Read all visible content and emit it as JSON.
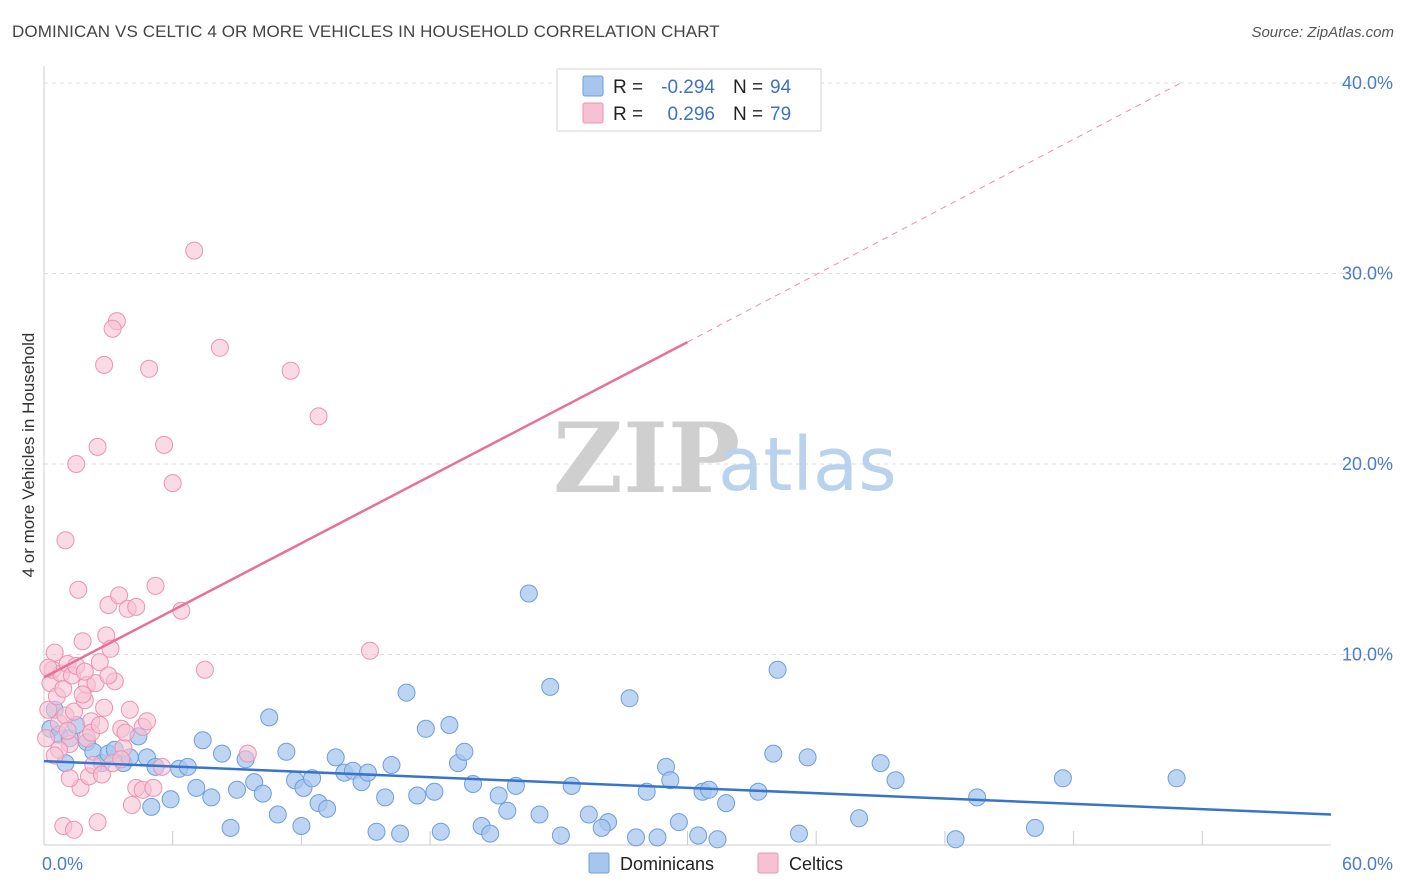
{
  "title": "DOMINICAN VS CELTIC 4 OR MORE VEHICLES IN HOUSEHOLD CORRELATION CHART",
  "source": "Source: ZipAtlas.com",
  "watermark": {
    "zip": "ZIP",
    "atlas": "atlas"
  },
  "colors": {
    "blue_fill": "#a7c6ee",
    "blue_stroke": "#6e9fd9",
    "blue_line": "#3874cb",
    "pink_fill": "#f6c1d3",
    "pink_stroke": "#ec93b1",
    "pink_line": "#e8709a",
    "grid": "#dddddd",
    "tick": "#4a7cc9"
  },
  "legend_box": {
    "rows": [
      {
        "r_label": "R =",
        "r_value": "-0.294",
        "n_label": "N =",
        "n_value": "94",
        "series": "blue"
      },
      {
        "r_label": "R =",
        "r_value": "0.296",
        "n_label": "N =",
        "n_value": "79",
        "series": "pink"
      }
    ]
  },
  "chart_data": {
    "type": "scatter",
    "ylabel": "4 or more Vehicles in Household",
    "xlim": [
      0,
      60
    ],
    "ylim": [
      0,
      40
    ],
    "x_tick_labels": [
      {
        "value": 0,
        "label": "0.0%"
      },
      {
        "value": 60,
        "label": "60.0%"
      }
    ],
    "y_tick_labels": [
      {
        "value": 10,
        "label": "10.0%"
      },
      {
        "value": 20,
        "label": "20.0%"
      },
      {
        "value": 30,
        "label": "30.0%"
      },
      {
        "value": 40,
        "label": "40.0%"
      }
    ],
    "x_minor_ticks": [
      6,
      12,
      18,
      24,
      30,
      36,
      42,
      48,
      54
    ],
    "legend": [
      "Dominicans",
      "Celtics"
    ],
    "series": [
      {
        "name": "Dominicans",
        "color": "blue",
        "trend": {
          "x0": 0,
          "y0": 4.4,
          "x1": 60,
          "y1": 1.6
        },
        "points": [
          [
            0.3,
            6.1
          ],
          [
            0.7,
            5.8
          ],
          [
            1.2,
            5.6
          ],
          [
            1.5,
            6.3
          ],
          [
            2.0,
            5.4
          ],
          [
            2.3,
            4.9
          ],
          [
            2.7,
            4.3
          ],
          [
            3.0,
            4.8
          ],
          [
            3.3,
            5.0
          ],
          [
            3.7,
            4.3
          ],
          [
            4.0,
            4.6
          ],
          [
            4.4,
            5.7
          ],
          [
            4.8,
            4.6
          ],
          [
            5.2,
            4.1
          ],
          [
            5.9,
            2.4
          ],
          [
            6.3,
            4.0
          ],
          [
            6.7,
            4.1
          ],
          [
            7.1,
            3.0
          ],
          [
            7.4,
            5.5
          ],
          [
            7.8,
            2.5
          ],
          [
            8.3,
            4.8
          ],
          [
            8.7,
            0.9
          ],
          [
            9.0,
            2.9
          ],
          [
            9.4,
            4.5
          ],
          [
            9.8,
            3.3
          ],
          [
            10.2,
            2.7
          ],
          [
            10.5,
            6.7
          ],
          [
            10.9,
            1.6
          ],
          [
            11.3,
            4.9
          ],
          [
            11.7,
            3.4
          ],
          [
            12.1,
            3.0
          ],
          [
            12.5,
            3.5
          ],
          [
            12.8,
            2.2
          ],
          [
            13.2,
            1.9
          ],
          [
            13.6,
            4.6
          ],
          [
            14.0,
            3.8
          ],
          [
            14.4,
            3.9
          ],
          [
            14.8,
            3.3
          ],
          [
            15.1,
            3.8
          ],
          [
            15.5,
            0.7
          ],
          [
            15.9,
            2.5
          ],
          [
            16.2,
            4.2
          ],
          [
            16.6,
            0.6
          ],
          [
            16.9,
            8.0
          ],
          [
            17.4,
            2.6
          ],
          [
            17.8,
            6.1
          ],
          [
            18.2,
            2.8
          ],
          [
            18.5,
            0.7
          ],
          [
            18.9,
            6.3
          ],
          [
            19.3,
            4.3
          ],
          [
            19.6,
            4.9
          ],
          [
            20.0,
            3.2
          ],
          [
            20.4,
            1.0
          ],
          [
            20.8,
            0.6
          ],
          [
            21.2,
            2.6
          ],
          [
            21.6,
            1.8
          ],
          [
            22.0,
            3.1
          ],
          [
            22.6,
            13.2
          ],
          [
            23.1,
            1.6
          ],
          [
            23.6,
            8.3
          ],
          [
            24.1,
            0.5
          ],
          [
            24.6,
            3.1
          ],
          [
            25.4,
            1.6
          ],
          [
            26.3,
            1.2
          ],
          [
            27.3,
            7.7
          ],
          [
            27.6,
            0.4
          ],
          [
            28.1,
            2.8
          ],
          [
            28.6,
            0.4
          ],
          [
            29.0,
            4.1
          ],
          [
            29.2,
            3.4
          ],
          [
            29.6,
            1.2
          ],
          [
            30.5,
            0.5
          ],
          [
            30.7,
            2.8
          ],
          [
            31.0,
            2.9
          ],
          [
            31.4,
            0.3
          ],
          [
            31.8,
            2.2
          ],
          [
            33.3,
            2.8
          ],
          [
            34.0,
            4.8
          ],
          [
            34.2,
            9.2
          ],
          [
            35.2,
            0.6
          ],
          [
            35.6,
            4.6
          ],
          [
            38.0,
            1.4
          ],
          [
            39.0,
            4.3
          ],
          [
            39.7,
            3.4
          ],
          [
            42.5,
            0.3
          ],
          [
            46.2,
            0.9
          ],
          [
            47.5,
            3.5
          ],
          [
            52.8,
            3.5
          ],
          [
            0.5,
            7.1
          ],
          [
            1.0,
            4.3
          ],
          [
            5.0,
            2.0
          ],
          [
            12.0,
            1.0
          ],
          [
            26.0,
            0.9
          ],
          [
            43.5,
            2.5
          ]
        ]
      },
      {
        "name": "Celtics",
        "color": "pink",
        "trend": {
          "x0": 0,
          "y0": 8.8,
          "x1": 30,
          "y1": 26.4,
          "dash_to_x": 53,
          "dash_to_y": 40
        },
        "points": [
          [
            0.1,
            5.6
          ],
          [
            0.2,
            7.1
          ],
          [
            0.3,
            8.5
          ],
          [
            0.4,
            9.2
          ],
          [
            0.5,
            10.1
          ],
          [
            0.6,
            7.8
          ],
          [
            0.7,
            6.4
          ],
          [
            0.8,
            9.0
          ],
          [
            0.9,
            8.2
          ],
          [
            1.0,
            6.8
          ],
          [
            1.1,
            9.5
          ],
          [
            1.2,
            5.3
          ],
          [
            1.3,
            8.9
          ],
          [
            1.4,
            7.0
          ],
          [
            1.5,
            9.4
          ],
          [
            1.6,
            13.4
          ],
          [
            1.7,
            3.0
          ],
          [
            1.8,
            10.7
          ],
          [
            1.9,
            7.6
          ],
          [
            2.0,
            8.4
          ],
          [
            2.1,
            3.6
          ],
          [
            2.2,
            6.5
          ],
          [
            2.3,
            4.2
          ],
          [
            2.4,
            8.5
          ],
          [
            2.5,
            1.2
          ],
          [
            2.6,
            9.6
          ],
          [
            2.7,
            3.7
          ],
          [
            2.8,
            7.2
          ],
          [
            2.9,
            11.0
          ],
          [
            3.0,
            12.6
          ],
          [
            3.1,
            10.3
          ],
          [
            3.2,
            4.3
          ],
          [
            3.3,
            8.6
          ],
          [
            3.4,
            27.5
          ],
          [
            3.5,
            13.1
          ],
          [
            3.6,
            6.1
          ],
          [
            3.7,
            5.1
          ],
          [
            3.9,
            12.4
          ],
          [
            4.1,
            2.1
          ],
          [
            4.3,
            12.5
          ],
          [
            4.6,
            6.2
          ],
          [
            4.9,
            25.0
          ],
          [
            5.2,
            13.6
          ],
          [
            5.6,
            21.0
          ],
          [
            6.0,
            19.0
          ],
          [
            6.4,
            12.3
          ],
          [
            7.0,
            31.2
          ],
          [
            7.5,
            9.2
          ],
          [
            8.2,
            26.1
          ],
          [
            9.5,
            4.8
          ],
          [
            11.5,
            24.9
          ],
          [
            12.8,
            22.5
          ],
          [
            15.2,
            10.2
          ],
          [
            1.0,
            16.0
          ],
          [
            1.5,
            20.0
          ],
          [
            2.5,
            20.9
          ],
          [
            2.8,
            25.2
          ],
          [
            3.2,
            27.1
          ],
          [
            0.9,
            1.0
          ],
          [
            1.4,
            0.8
          ],
          [
            2.0,
            5.6
          ],
          [
            1.8,
            7.9
          ],
          [
            1.1,
            6.0
          ],
          [
            0.7,
            5.0
          ],
          [
            2.2,
            5.9
          ],
          [
            3.6,
            4.5
          ],
          [
            4.3,
            3.0
          ],
          [
            4.6,
            2.9
          ],
          [
            1.2,
            3.5
          ],
          [
            0.5,
            4.7
          ],
          [
            4.0,
            7.1
          ],
          [
            3.0,
            8.9
          ],
          [
            1.9,
            9.1
          ],
          [
            2.6,
            6.3
          ],
          [
            3.8,
            5.9
          ],
          [
            4.8,
            6.5
          ],
          [
            5.1,
            3.0
          ],
          [
            5.5,
            4.1
          ],
          [
            0.2,
            9.3
          ]
        ]
      }
    ]
  }
}
